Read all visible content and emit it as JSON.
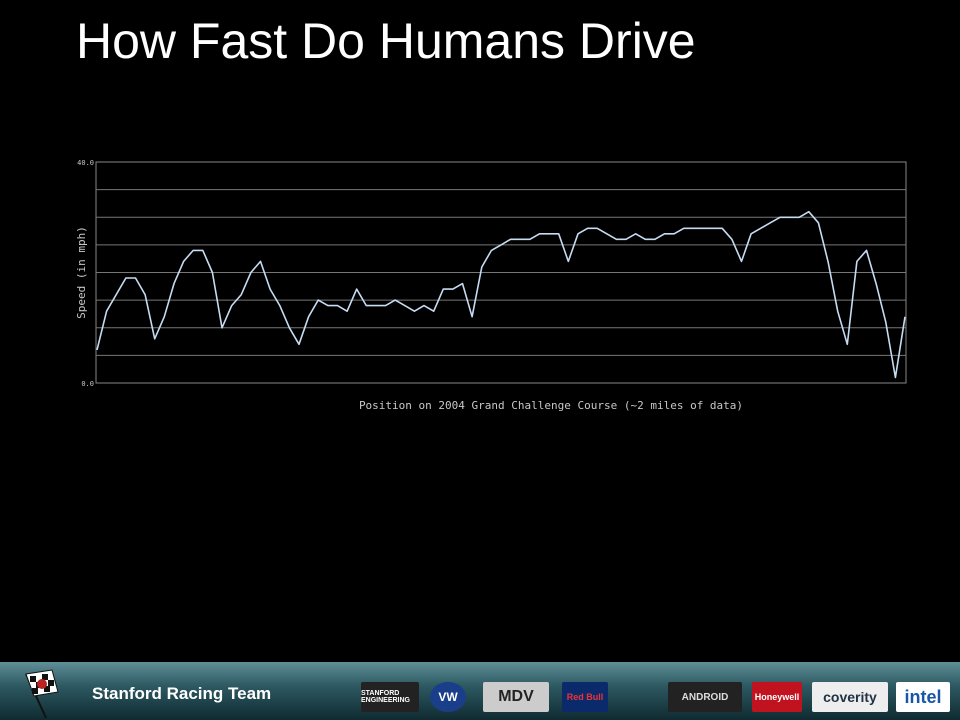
{
  "slide_title": "How Fast Do Humans Drive",
  "chart_data": {
    "type": "line",
    "ylabel": "Speed (in mph)",
    "xlabel": "Position on 2004 Grand Challenge Course (~2 miles of data)",
    "ylim": [
      0,
      40
    ],
    "yticks": [
      {
        "value": 0,
        "label": "0.0"
      },
      {
        "value": 40,
        "label": "40.0"
      }
    ],
    "ygrid": [
      5,
      10,
      15,
      20,
      25,
      30,
      35
    ],
    "grid": true,
    "series": [
      {
        "name": "Speed",
        "color": "#c6dcf2",
        "values": [
          6,
          13,
          16,
          19,
          19,
          16,
          8,
          12,
          18,
          22,
          24,
          24,
          20,
          10,
          14,
          16,
          20,
          22,
          17,
          14,
          10,
          7,
          12,
          15,
          14,
          14,
          13,
          17,
          14,
          14,
          14,
          15,
          14,
          13,
          14,
          13,
          17,
          17,
          18,
          12,
          21,
          24,
          25,
          26,
          26,
          26,
          27,
          27,
          27,
          22,
          27,
          28,
          28,
          27,
          26,
          26,
          27,
          26,
          26,
          27,
          27,
          28,
          28,
          28,
          28,
          28,
          26,
          22,
          27,
          28,
          29,
          30,
          30,
          30,
          31,
          29,
          22,
          13,
          7,
          22,
          24,
          18,
          11,
          1,
          12
        ]
      }
    ]
  },
  "footer": {
    "team": "Stanford Racing Team",
    "sponsors": [
      "STANFORD ENGINEERING",
      "VW",
      "MDV",
      "Red Bull",
      "ANDROID",
      "Honeywell",
      "coverity",
      "intel"
    ]
  }
}
